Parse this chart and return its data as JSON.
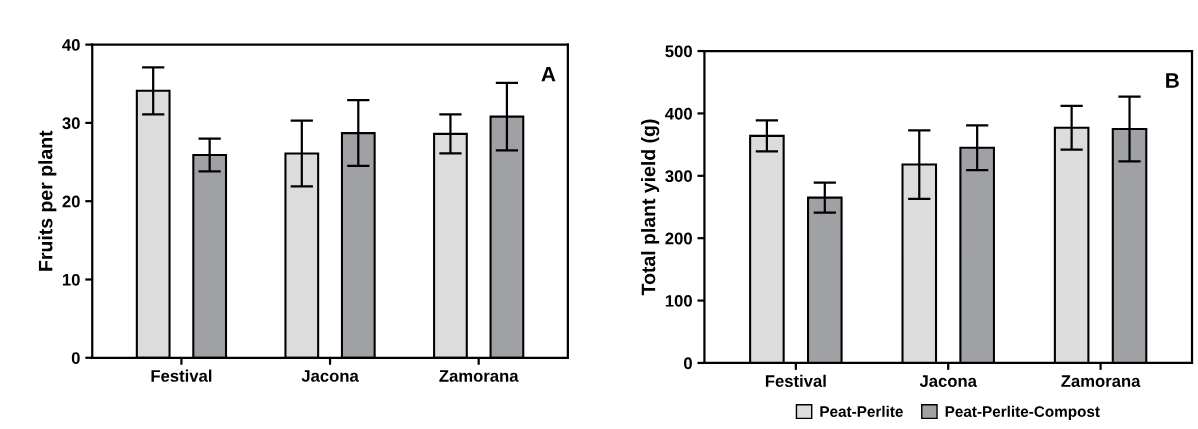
{
  "chart_data": [
    {
      "type": "bar",
      "ylabel": "Fruits per plant",
      "annotations": [
        "A"
      ],
      "categories": [
        "Festival",
        "Jacona",
        "Zamorana"
      ],
      "ylim": [
        0,
        40
      ],
      "yticks": [
        0,
        10,
        20,
        30,
        40
      ],
      "grid": false,
      "legend": false,
      "series": [
        {
          "color": "#dcdcdc",
          "values": [
            34.1,
            26.1,
            28.6
          ],
          "errors": [
            3.0,
            4.2,
            2.5
          ]
        },
        {
          "color": "#a0a1a5",
          "values": [
            25.9,
            28.7,
            30.8
          ],
          "errors": [
            2.1,
            4.2,
            4.3
          ]
        }
      ]
    },
    {
      "type": "bar",
      "ylabel": "Total plant yield (g)",
      "annotations": [
        "B"
      ],
      "categories": [
        "Festival",
        "Jacona",
        "Zamorana"
      ],
      "ylim": [
        0,
        500
      ],
      "yticks": [
        0,
        100,
        200,
        300,
        400,
        500
      ],
      "grid": false,
      "legend": "bottom",
      "series": [
        {
          "name": "Peat-Perlite",
          "color": "#dcdcdc",
          "values": [
            364,
            318,
            377
          ],
          "errors": [
            25,
            55,
            35
          ]
        },
        {
          "name": "Peat-Perlite-Compost",
          "color": "#a0a1a5",
          "values": [
            265,
            345,
            375
          ],
          "errors": [
            24,
            36,
            52
          ]
        }
      ]
    }
  ]
}
